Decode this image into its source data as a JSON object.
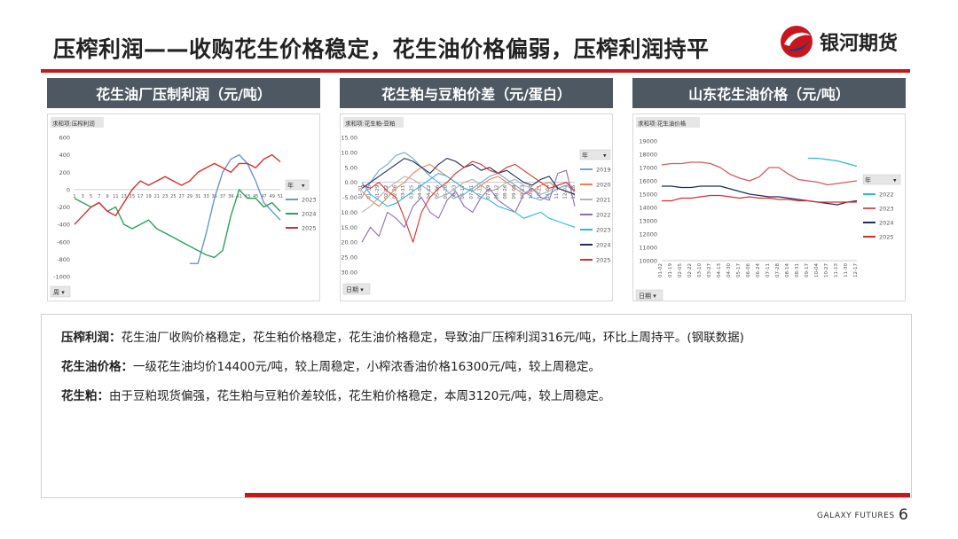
{
  "page": {
    "title": "压榨利润——收购花生价格稳定，花生油价格偏弱，压榨利润持平",
    "logo_text": "银河期货",
    "footer": "GALAXY FUTURES",
    "page_number": "6"
  },
  "colors": {
    "accent": "#c8161d",
    "header_bg": "#4d5862"
  },
  "charts": [
    {
      "header": "花生油厂压制利润（元/吨）",
      "field_label": "求和项:压榨利润",
      "filter_label": "周"
    },
    {
      "header": "花生粕与豆粕价差（元/蛋白）",
      "field_label": "求和项:花生粕-豆粕",
      "filter_label": "日期"
    },
    {
      "header": "山东花生油价格（元/吨）",
      "field_label": "求和项:花生油价格",
      "filter_label": "日期"
    }
  ],
  "text_block": [
    {
      "label": "压榨利润：",
      "text": "花生油厂收购价格稳定，花生粕价格稳定，花生油价格稳定，导致油厂压榨利润316元/吨，环比上周持平。(钢联数据)"
    },
    {
      "label": "花生油价格：",
      "text": "一级花生油均价14400元/吨，较上周稳定，小榨浓香油价格16300元/吨，较上周稳定。"
    },
    {
      "label": "花生粕：",
      "text": "由于豆粕现货偏强，花生粕与豆粕价差较低，花生粕价格稳定，本周3120元/吨，较上周稳定。"
    }
  ],
  "chart_data": [
    {
      "type": "line",
      "legend_title": "年",
      "legend_position": "right",
      "x_ticks": [
        "1",
        "3",
        "5",
        "7",
        "9",
        "11",
        "13",
        "15",
        "17",
        "19",
        "21",
        "23",
        "25",
        "27",
        "29",
        "31",
        "33",
        "35",
        "37",
        "39",
        "41",
        "43",
        "45",
        "47",
        "49",
        "51"
      ],
      "ylim": [
        -1000,
        600
      ],
      "y_ticks": [
        600,
        400,
        200,
        0,
        -200,
        -400,
        -600,
        -800,
        -1000
      ],
      "grid": false,
      "x": [
        1,
        3,
        5,
        7,
        9,
        11,
        13,
        15,
        17,
        19,
        21,
        23,
        25,
        27,
        29,
        31,
        33,
        35,
        37,
        39,
        41,
        43,
        45,
        47,
        49,
        51
      ],
      "series": [
        {
          "name": "2023",
          "color": "#6b96c8",
          "values": [
            null,
            null,
            null,
            null,
            null,
            null,
            null,
            null,
            null,
            null,
            null,
            null,
            null,
            null,
            -850,
            -850,
            -500,
            -100,
            200,
            350,
            400,
            300,
            100,
            -150,
            -250,
            -350
          ]
        },
        {
          "name": "2024",
          "color": "#2ca05a",
          "values": [
            -100,
            -150,
            -200,
            -150,
            -250,
            -200,
            -400,
            -450,
            -400,
            -350,
            -450,
            -500,
            -550,
            -600,
            -650,
            -700,
            -750,
            -780,
            -700,
            -300,
            0,
            -100,
            -100,
            -200,
            -150,
            -250
          ]
        },
        {
          "name": "2025",
          "color": "#d62f2f",
          "values": [
            -400,
            -300,
            -200,
            -150,
            -250,
            -300,
            -150,
            0,
            100,
            50,
            100,
            150,
            100,
            50,
            100,
            200,
            250,
            300,
            250,
            200,
            300,
            300,
            250,
            350,
            400,
            320
          ]
        }
      ]
    },
    {
      "type": "line",
      "legend_title": "年",
      "legend_position": "right",
      "x_ticks": [
        "01-01",
        "01-15",
        "01-29",
        "02-12",
        "02-26",
        "03-11",
        "03-25",
        "04-08",
        "04-22",
        "05-06",
        "05-20",
        "06-03",
        "06-17",
        "07-01",
        "07-15",
        "07-29",
        "08-12",
        "08-26",
        "09-09",
        "09-23",
        "10-07",
        "10-21",
        "11-04",
        "11-18",
        "12-02",
        "12-16"
      ],
      "ylim": [
        -30,
        15
      ],
      "y_ticks": [
        15.0,
        10.0,
        5.0,
        0.0,
        -5.0,
        -10.0,
        -15.0,
        -20.0,
        -25.0,
        -30.0
      ],
      "grid": false,
      "x": [
        "01",
        "02",
        "03",
        "04",
        "05",
        "06",
        "07",
        "08",
        "09",
        "10",
        "11",
        "12",
        "13",
        "14",
        "15",
        "16",
        "17",
        "18",
        "19",
        "20",
        "21",
        "22",
        "23",
        "24",
        "25",
        "26"
      ],
      "series": [
        {
          "name": "2019",
          "color": "#6fa6d9",
          "values": [
            -5,
            0,
            4,
            6,
            9,
            10,
            8,
            5,
            2,
            0,
            -3,
            -5,
            -4,
            -2,
            0,
            2,
            3,
            1,
            -1,
            -3,
            -5,
            -6,
            -4,
            -2,
            -1,
            -3
          ]
        },
        {
          "name": "2020",
          "color": "#e8825a",
          "values": [
            -3,
            -6,
            -8,
            -5,
            -2,
            0,
            3,
            5,
            6,
            4,
            2,
            0,
            -2,
            -3,
            -1,
            1,
            2,
            0,
            -2,
            -4,
            -3,
            -1,
            0,
            -2,
            -3,
            -4
          ]
        },
        {
          "name": "2021",
          "color": "#b3b3b3",
          "values": [
            -10,
            -8,
            -5,
            -2,
            0,
            2,
            1,
            -1,
            -3,
            -5,
            -4,
            -2,
            0,
            1,
            -1,
            -3,
            -2,
            0,
            1,
            -1,
            -2,
            -4,
            -3,
            -1,
            0,
            -2
          ]
        },
        {
          "name": "2022",
          "color": "#8f6cb5",
          "values": [
            -20,
            -15,
            -18,
            -10,
            -12,
            -15,
            -8,
            -5,
            -10,
            -12,
            -6,
            -3,
            -8,
            -10,
            -5,
            -2,
            -6,
            -8,
            -10,
            -4,
            -2,
            -5,
            -6,
            3,
            4,
            -8
          ]
        },
        {
          "name": "2023",
          "color": "#2fb9d9",
          "values": [
            0,
            -4,
            -6,
            -8,
            -7,
            -5,
            -3,
            -1,
            1,
            3,
            2,
            0,
            -2,
            -3,
            -5,
            -6,
            -8,
            -9,
            -10,
            -12,
            -11,
            -10,
            -12,
            -13,
            -14,
            -15
          ]
        },
        {
          "name": "2024",
          "color": "#1f2e5c",
          "values": [
            -2,
            0,
            2,
            4,
            6,
            8,
            7,
            5,
            3,
            6,
            8,
            7,
            5,
            6,
            4,
            5,
            3,
            4,
            2,
            0,
            -1,
            1,
            2,
            -2,
            -3,
            -4
          ]
        },
        {
          "name": "2025",
          "color": "#d62f2f",
          "values": [
            -1,
            -2,
            0,
            -3,
            -5,
            -12,
            -20,
            -10,
            -5,
            -2,
            0,
            3,
            5,
            7,
            6,
            4,
            3,
            5,
            6,
            4,
            2,
            0,
            -2,
            -1,
            0,
            -3
          ]
        }
      ]
    },
    {
      "type": "line",
      "legend_title": "年",
      "legend_position": "right",
      "x_ticks": [
        "01-02",
        "01-19",
        "02-05",
        "02-22",
        "03-10",
        "03-27",
        "04-13",
        "04-30",
        "05-17",
        "06-06",
        "06-24",
        "07-11",
        "07-28",
        "08-14",
        "08-31",
        "09-17",
        "10-04",
        "10-27",
        "11-13",
        "11-30",
        "12-17"
      ],
      "ylim": [
        10000,
        19000
      ],
      "y_ticks": [
        19000,
        18000,
        17000,
        16000,
        15000,
        14000,
        13000,
        12000,
        11000,
        10000
      ],
      "grid": false,
      "x": [
        "01-02",
        "01-19",
        "02-05",
        "02-22",
        "03-10",
        "03-27",
        "04-13",
        "04-30",
        "05-17",
        "06-06",
        "06-24",
        "07-11",
        "07-28",
        "08-14",
        "08-31",
        "09-17",
        "10-04",
        "10-27",
        "11-13",
        "11-30",
        "12-17"
      ],
      "series": [
        {
          "name": "2022",
          "color": "#2fb9d9",
          "values": [
            null,
            null,
            null,
            null,
            null,
            null,
            null,
            null,
            null,
            null,
            null,
            null,
            null,
            null,
            null,
            17700,
            17700,
            17600,
            17500,
            17300,
            17100
          ]
        },
        {
          "name": "2023",
          "color": "#d55a5a",
          "values": [
            17200,
            17300,
            17300,
            17400,
            17400,
            17300,
            17000,
            16500,
            16200,
            16000,
            16300,
            17000,
            17000,
            16500,
            16100,
            16000,
            15900,
            15700,
            15800,
            15900,
            16000
          ]
        },
        {
          "name": "2024",
          "color": "#1f2e5c",
          "values": [
            15600,
            15600,
            15500,
            15500,
            15600,
            15600,
            15600,
            15400,
            15200,
            15000,
            14900,
            14800,
            14800,
            14700,
            14600,
            14500,
            14400,
            14300,
            14200,
            14400,
            14500
          ]
        },
        {
          "name": "2025",
          "color": "#d62f2f",
          "values": [
            14500,
            14500,
            14700,
            14700,
            14800,
            14900,
            14900,
            14800,
            14700,
            14800,
            14700,
            14700,
            14600,
            14600,
            14500,
            14500,
            14400,
            14400,
            14400,
            14400,
            14400
          ]
        }
      ]
    }
  ]
}
